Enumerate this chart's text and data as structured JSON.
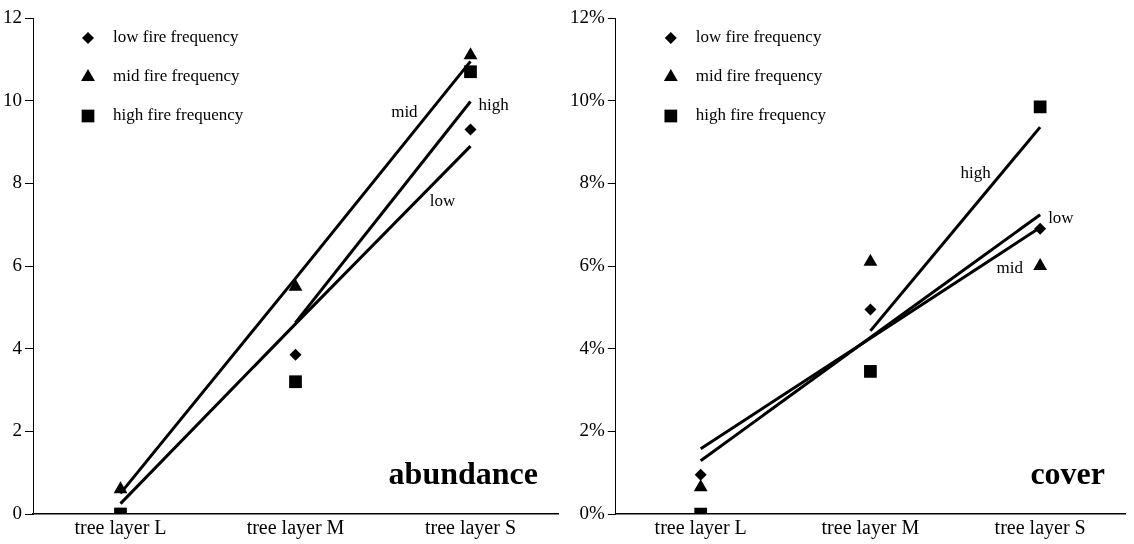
{
  "chart_data": [
    {
      "type": "scatter",
      "title": "abundance",
      "categories": [
        "tree layer L",
        "tree layer M",
        "tree layer S"
      ],
      "ylim": [
        0,
        12
      ],
      "yticks": [
        0,
        2,
        4,
        6,
        8,
        10,
        12
      ],
      "grid": false,
      "legend": "top left",
      "series": [
        {
          "name": "low fire frequency",
          "color": "#000000",
          "marker": "diamond",
          "values": [
            null,
            3.85,
            9.3
          ]
        },
        {
          "name": "mid fire frequency",
          "color": "#000000",
          "marker": "triangle",
          "values": [
            0.6,
            5.5,
            11.1
          ]
        },
        {
          "name": "high fire frequency",
          "color": "#000000",
          "marker": "square",
          "values": [
            0,
            3.2,
            10.7
          ]
        },
        {
          "type": "line",
          "name": "low",
          "color": "#000000",
          "values": [
            0.25,
            4.6,
            8.9
          ]
        },
        {
          "type": "line",
          "name": "mid",
          "color": "#000000",
          "values": [
            0.5,
            5.7,
            10.95
          ]
        },
        {
          "type": "line",
          "name": "high",
          "color": "#000000",
          "values": [
            null,
            4.63,
            9.98
          ]
        }
      ]
    },
    {
      "type": "scatter",
      "title": "cover",
      "categories": [
        "tree layer L",
        "tree layer M",
        "tree layer S"
      ],
      "ylim": [
        0,
        12
      ],
      "yticks": [
        {
          "value": 0,
          "label": "0%"
        },
        {
          "value": 2,
          "label": "2%"
        },
        {
          "value": 4,
          "label": "4%"
        },
        {
          "value": 6,
          "label": "6%"
        },
        {
          "value": 8,
          "label": "8%"
        },
        {
          "value": 10,
          "label": "10%"
        },
        {
          "value": 12,
          "label": "12%"
        }
      ],
      "grid": false,
      "legend": "top left",
      "series": [
        {
          "name": "low fire frequency",
          "color": "#000000",
          "marker": "diamond",
          "values": [
            0.95,
            4.95,
            6.9
          ]
        },
        {
          "name": "mid fire frequency",
          "color": "#000000",
          "marker": "triangle",
          "values": [
            0.65,
            6.1,
            6.0
          ]
        },
        {
          "name": "high fire frequency",
          "color": "#000000",
          "marker": "square",
          "values": [
            0,
            3.45,
            9.85
          ]
        },
        {
          "type": "line",
          "name": "low",
          "color": "#000000",
          "values": [
            1.29,
            4.27,
            7.24
          ]
        },
        {
          "type": "line",
          "name": "mid",
          "color": "#000000",
          "values": [
            1.58,
            4.25,
            6.93
          ]
        },
        {
          "type": "line",
          "name": "high",
          "color": "#000000",
          "values": [
            null,
            4.43,
            9.36
          ]
        }
      ]
    }
  ]
}
